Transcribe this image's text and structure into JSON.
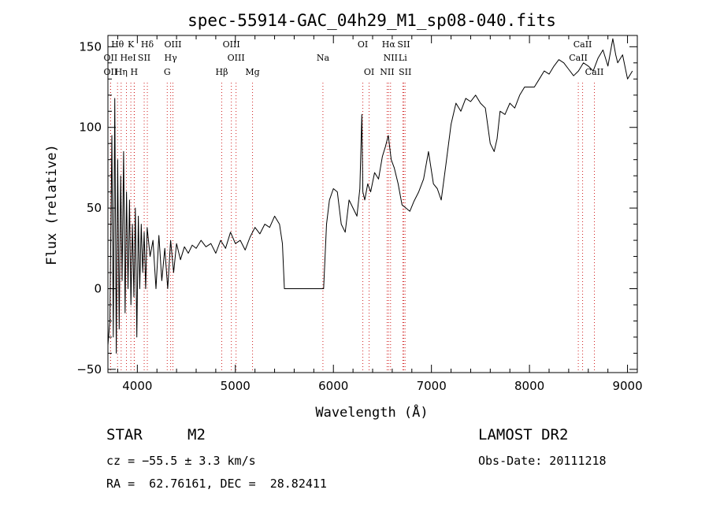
{
  "chart_data": {
    "type": "line",
    "title": "spec-55914-GAC_04h29_M1_sp08-040.fits",
    "xlabel": "Wavelength (Å)",
    "ylabel": "Flux (relative)",
    "xlim": [
      3700,
      9100
    ],
    "ylim": [
      -52,
      157
    ],
    "x_ticks": [
      4000,
      5000,
      6000,
      7000,
      8000,
      9000
    ],
    "y_ticks": [
      -50,
      0,
      50,
      100,
      150
    ],
    "x_tick_labels": [
      "4000",
      "5000",
      "6000",
      "7000",
      "8000",
      "9000"
    ],
    "y_tick_labels": [
      "−50",
      "0",
      "50",
      "100",
      "150"
    ],
    "grid": false,
    "series": [
      {
        "x": [
          3700,
          3720,
          3740,
          3755,
          3770,
          3785,
          3800,
          3815,
          3830,
          3845,
          3860,
          3875,
          3890,
          3905,
          3920,
          3935,
          3950,
          3965,
          3980,
          3995,
          4010,
          4025,
          4040,
          4055,
          4070,
          4085,
          4100,
          4130,
          4160,
          4190,
          4220,
          4250,
          4280,
          4310,
          4340,
          4370,
          4400,
          4440,
          4480,
          4520,
          4560,
          4600,
          4650,
          4700,
          4750,
          4800,
          4850,
          4900,
          4950,
          5000,
          5050,
          5100,
          5150,
          5200,
          5250,
          5300,
          5350,
          5400,
          5450,
          5480,
          5500,
          5600,
          5700,
          5800,
          5900,
          5930,
          5960,
          6000,
          6040,
          6080,
          6120,
          6160,
          6200,
          6240,
          6270,
          6290,
          6300,
          6320,
          6350,
          6380,
          6420,
          6460,
          6500,
          6530,
          6560,
          6590,
          6620,
          6660,
          6700,
          6740,
          6780,
          6820,
          6870,
          6920,
          6970,
          7020,
          7060,
          7100,
          7150,
          7200,
          7250,
          7300,
          7350,
          7400,
          7450,
          7500,
          7550,
          7600,
          7640,
          7670,
          7700,
          7750,
          7800,
          7850,
          7900,
          7950,
          8000,
          8050,
          8100,
          8150,
          8200,
          8250,
          8300,
          8350,
          8400,
          8450,
          8500,
          8550,
          8600,
          8650,
          8700,
          8750,
          8800,
          8850,
          8880,
          8900,
          8950,
          9000,
          9050
        ],
        "y": [
          -35,
          -20,
          95,
          -30,
          118,
          -40,
          80,
          -25,
          70,
          5,
          85,
          -15,
          60,
          0,
          55,
          -10,
          40,
          -5,
          50,
          -30,
          45,
          0,
          40,
          10,
          35,
          0,
          38,
          20,
          30,
          0,
          33,
          5,
          25,
          0,
          30,
          10,
          28,
          18,
          26,
          22,
          27,
          25,
          30,
          26,
          28,
          22,
          30,
          25,
          35,
          28,
          30,
          24,
          32,
          38,
          34,
          40,
          38,
          45,
          40,
          28,
          0,
          0,
          0,
          0,
          0,
          40,
          55,
          62,
          60,
          40,
          35,
          55,
          50,
          45,
          62,
          108,
          60,
          55,
          65,
          60,
          72,
          68,
          82,
          88,
          95,
          80,
          75,
          65,
          52,
          50,
          48,
          54,
          60,
          68,
          85,
          65,
          62,
          55,
          78,
          102,
          115,
          110,
          118,
          116,
          120,
          115,
          112,
          90,
          85,
          93,
          110,
          108,
          115,
          112,
          120,
          125,
          125,
          125,
          130,
          135,
          133,
          138,
          142,
          140,
          136,
          132,
          135,
          140,
          138,
          135,
          143,
          148,
          138,
          155,
          145,
          140,
          145,
          130,
          135
        ]
      }
    ],
    "spectral_lines": [
      {
        "label": "Hθ",
        "x": 3798,
        "row": 0
      },
      {
        "label": "K",
        "x": 3934,
        "row": 0
      },
      {
        "label": "Hδ",
        "x": 4102,
        "row": 0
      },
      {
        "label": "OIII",
        "x": 4363,
        "row": 0
      },
      {
        "label": "OIII",
        "x": 4959,
        "row": 0
      },
      {
        "label": "OI",
        "x": 6300,
        "row": 0
      },
      {
        "label": "Hα",
        "x": 6563,
        "row": 0
      },
      {
        "label": "SII",
        "x": 6717,
        "row": 0
      },
      {
        "label": "CaII",
        "x": 8542,
        "row": 0
      },
      {
        "label": "OII",
        "x": 3727,
        "row": 1
      },
      {
        "label": "He",
        "x": 3889,
        "row": 1
      },
      {
        "label": "I",
        "x": 3970,
        "row": 1
      },
      {
        "label": "SII",
        "x": 4070,
        "row": 1
      },
      {
        "label": "Hγ",
        "x": 4340,
        "row": 1
      },
      {
        "label": "OIII",
        "x": 5007,
        "row": 1
      },
      {
        "label": "Na",
        "x": 5893,
        "row": 1
      },
      {
        "label": "NII",
        "x": 6583,
        "row": 1
      },
      {
        "label": "Li",
        "x": 6708,
        "row": 1
      },
      {
        "label": "CaII",
        "x": 8498,
        "row": 1
      },
      {
        "label": "OII",
        "x": 3727,
        "row": 2
      },
      {
        "label": "Hη",
        "x": 3835,
        "row": 2
      },
      {
        "label": "H",
        "x": 3968,
        "row": 2
      },
      {
        "label": "G",
        "x": 4305,
        "row": 2
      },
      {
        "label": "Hβ",
        "x": 4861,
        "row": 2
      },
      {
        "label": "Mg",
        "x": 5175,
        "row": 2
      },
      {
        "label": "OI",
        "x": 6364,
        "row": 2
      },
      {
        "label": "NII",
        "x": 6548,
        "row": 2
      },
      {
        "label": "SII",
        "x": 6731,
        "row": 2
      },
      {
        "label": "CaII",
        "x": 8662,
        "row": 2
      }
    ]
  },
  "info": {
    "class": "STAR",
    "subclass": "M2",
    "survey": "LAMOST DR2",
    "cz": "cz = −55.5 ± 3.3 km/s",
    "obsdate": "Obs-Date: 20111218",
    "radec": "RA =  62.76161, DEC =  28.82411"
  },
  "colors": {
    "axis": "#000000",
    "spectrum": "#000000",
    "line_markers": "#d02020"
  }
}
